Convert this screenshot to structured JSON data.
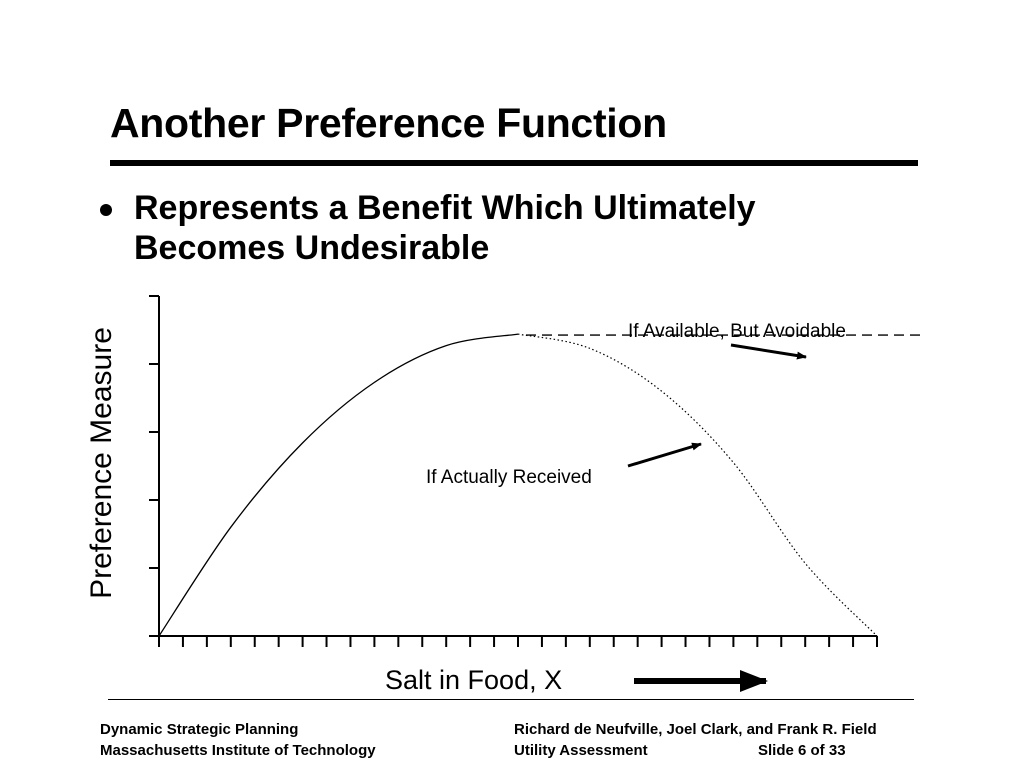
{
  "slide": {
    "title": "Another Preference Function",
    "bullet_line1": "Represents a Benefit Which Ultimately",
    "bullet_line2": "Becomes Undesirable"
  },
  "chart_data": {
    "type": "line",
    "xlabel": "Salt in Food, X",
    "ylabel": "Preference Measure",
    "x_ticks": 30,
    "y_ticks": 6,
    "grid": false,
    "xlim": [
      0,
      30
    ],
    "ylim": [
      0,
      5
    ],
    "series": [
      {
        "name": "If Available, But Avoidable",
        "style": "dashed",
        "x": [
          0,
          3,
          6,
          9,
          12,
          15,
          18,
          21,
          24,
          27,
          30
        ],
        "y": [
          0,
          1.6,
          2.84,
          3.73,
          4.27,
          4.44,
          4.44,
          4.44,
          4.44,
          4.44,
          4.44
        ]
      },
      {
        "name": "If Actually Received",
        "style": "dotted",
        "x": [
          15,
          18,
          21,
          24,
          27,
          30
        ],
        "y": [
          4.44,
          4.23,
          3.6,
          2.55,
          1.07,
          0
        ]
      }
    ],
    "annotations": [
      {
        "text": "If Available, But Avoidable"
      },
      {
        "text": "If Actually Received"
      }
    ],
    "colors": {
      "line": "#000000"
    }
  },
  "footer": {
    "left_line1": "Dynamic Strategic Planning",
    "left_line2": "Massachusetts Institute of Technology",
    "right_line1": "Richard de Neufville, Joel Clark, and Frank R. Field",
    "right_line2": "Utility Assessment",
    "slide_number": "Slide 6 of 33"
  }
}
